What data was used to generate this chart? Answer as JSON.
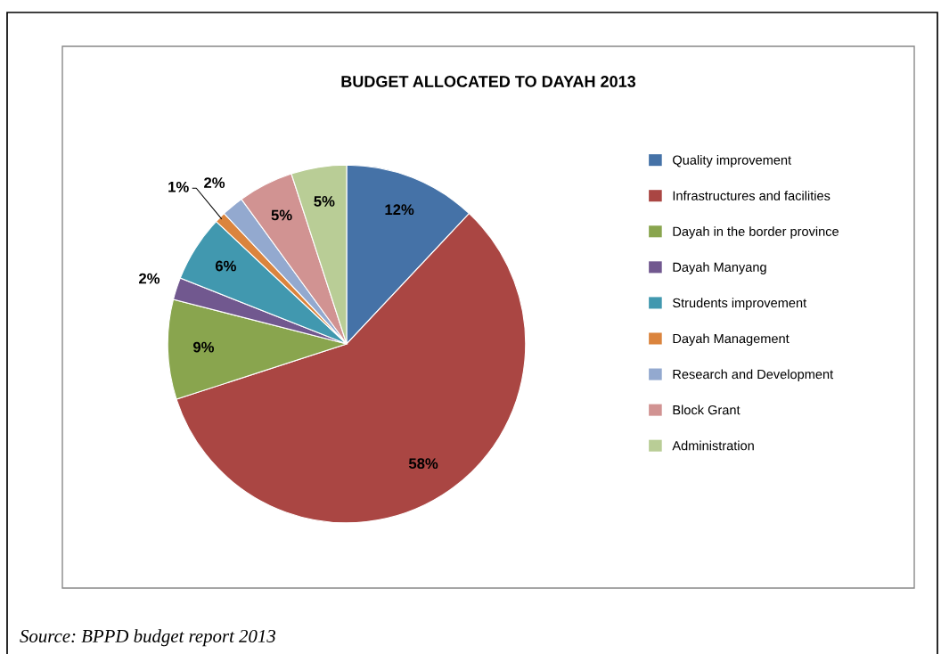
{
  "chart_data": {
    "type": "pie",
    "title": "BUDGET ALLOCATED TO DAYAH 2013",
    "categories": [
      "Quality improvement",
      "Infrastructures and facilities",
      "Dayah in the border province",
      "Dayah Manyang",
      "Strudents improvement",
      "Dayah Management",
      "Research and Development",
      "Block Grant",
      "Administration"
    ],
    "values": [
      12,
      58,
      9,
      2,
      6,
      1,
      2,
      5,
      5
    ],
    "value_labels": [
      "12%",
      "58%",
      "9%",
      "2%",
      "6%",
      "1%",
      "2%",
      "5%",
      "5%"
    ],
    "colors": [
      "#4572a7",
      "#aa4643",
      "#89a54e",
      "#71588f",
      "#4198af",
      "#db843d",
      "#93a9cf",
      "#d19392",
      "#b9cd96"
    ],
    "legend": "right",
    "annotations": [
      "Source: BPPD budget report 2013"
    ]
  }
}
